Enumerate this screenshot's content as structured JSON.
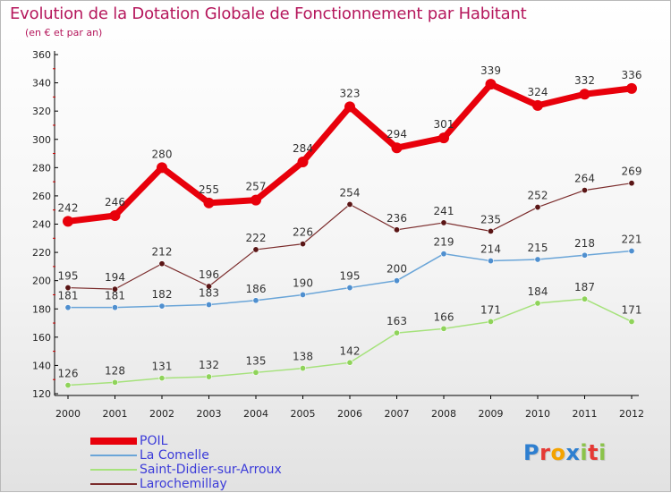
{
  "title": "Evolution de la Dotation Globale de Fonctionnement par Habitant",
  "subtitle": "(en € et par an)",
  "logo": {
    "text": "Proxiti",
    "letters": [
      "P",
      "r",
      "o",
      "x",
      "i",
      "t",
      "i"
    ],
    "colors": [
      "#2e7fd0",
      "#e53935",
      "#f4a300",
      "#2e7fd0",
      "#8bc34a",
      "#e53935",
      "#8bc34a"
    ]
  },
  "chart_data": {
    "type": "line",
    "x": [
      "2000",
      "2001",
      "2002",
      "2003",
      "2004",
      "2005",
      "2006",
      "2007",
      "2008",
      "2009",
      "2010",
      "2011",
      "2012"
    ],
    "ylim": [
      120,
      360
    ],
    "yticks": [
      120,
      140,
      160,
      180,
      200,
      220,
      240,
      260,
      280,
      300,
      320,
      340,
      360
    ],
    "grid": false,
    "legend_position": "bottom-left",
    "series": [
      {
        "name": "POIL",
        "color": "#e8000b",
        "width": 7,
        "marker_radius": 6,
        "marker_fill": "#e8000b",
        "values": [
          242,
          246,
          280,
          255,
          257,
          284,
          323,
          294,
          301,
          339,
          324,
          332,
          336
        ]
      },
      {
        "name": "La Comelle",
        "color": "#6aa5d8",
        "width": 1.5,
        "marker_radius": 3.2,
        "marker_fill": "#4f8fcf",
        "values": [
          181,
          181,
          182,
          183,
          186,
          190,
          195,
          200,
          219,
          214,
          215,
          218,
          221
        ]
      },
      {
        "name": "Saint-Didier-sur-Arroux",
        "color": "#a6e27c",
        "width": 1.5,
        "marker_radius": 3.2,
        "marker_fill": "#8fd35a",
        "values": [
          126,
          128,
          131,
          132,
          135,
          138,
          142,
          163,
          166,
          171,
          184,
          187,
          171
        ]
      },
      {
        "name": "Larochemillay",
        "color": "#7b2c2c",
        "width": 1.2,
        "marker_radius": 3.2,
        "marker_fill": "#5a1515",
        "values": [
          195,
          194,
          212,
          196,
          222,
          226,
          254,
          236,
          241,
          235,
          252,
          264,
          269
        ]
      }
    ],
    "label_color": "#333333",
    "axis_color": "#000000",
    "tick_mark_color": "#cc0000"
  }
}
